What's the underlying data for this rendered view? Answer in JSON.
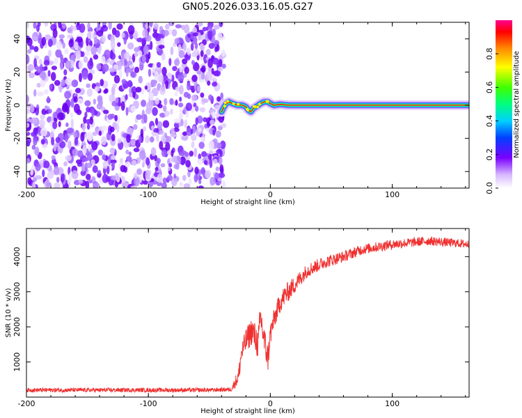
{
  "title": "GN05.2026.033.16.05.G27",
  "colors": {
    "snr_line": "#f03030",
    "axis": "#000000"
  },
  "chart_data": [
    {
      "type": "heatmap",
      "name": "spectrogram",
      "xlabel": "Height of straight line (km)",
      "ylabel": "Frequency (Hz)",
      "xlim": [
        -200,
        163
      ],
      "ylim": [
        -50,
        50
      ],
      "xticks": [
        -200,
        -100,
        0,
        100
      ],
      "xtick_labels": [
        "-200",
        "-100",
        "0",
        "100"
      ],
      "yticks": [
        -40,
        -20,
        0,
        20,
        40
      ],
      "ytick_labels": [
        "-40",
        "-20",
        "0",
        "20",
        "40"
      ],
      "noise_region_x": [
        -200,
        -38
      ],
      "signal_ridge": [
        {
          "x": -40,
          "y": -4
        },
        {
          "x": -38,
          "y": -1
        },
        {
          "x": -36,
          "y": 1
        },
        {
          "x": -34,
          "y": 2
        },
        {
          "x": -31,
          "y": 1
        },
        {
          "x": -27,
          "y": 0
        },
        {
          "x": -23,
          "y": 0
        },
        {
          "x": -20,
          "y": -1
        },
        {
          "x": -18,
          "y": -3
        },
        {
          "x": -16,
          "y": -4
        },
        {
          "x": -14,
          "y": -2
        },
        {
          "x": -12,
          "y": -1
        },
        {
          "x": -10,
          "y": 0
        },
        {
          "x": -8,
          "y": 1
        },
        {
          "x": -5,
          "y": 2
        },
        {
          "x": -2,
          "y": 2
        },
        {
          "x": 0,
          "y": 1
        },
        {
          "x": 3,
          "y": 0
        },
        {
          "x": 8,
          "y": 0.5
        },
        {
          "x": 15,
          "y": 0
        },
        {
          "x": 30,
          "y": 0
        },
        {
          "x": 60,
          "y": 0
        },
        {
          "x": 100,
          "y": 0
        },
        {
          "x": 163,
          "y": 0
        }
      ],
      "colorbar": {
        "label": "Normalized spectral amplitude",
        "range": [
          0,
          1
        ],
        "ticks": [
          0.0,
          0.2,
          0.4,
          0.6,
          0.8
        ],
        "tick_labels": [
          "0.0",
          "0.2",
          "0.4",
          "0.6",
          "0.8"
        ]
      }
    },
    {
      "type": "line",
      "name": "snr",
      "xlabel": "Height of straight line (km)",
      "ylabel": "SNR (10 * v/v)",
      "xlim": [
        -200,
        163
      ],
      "ylim": [
        0,
        4800
      ],
      "xticks": [
        -200,
        -100,
        0,
        100
      ],
      "xtick_labels": [
        "-200",
        "-100",
        "0",
        "100"
      ],
      "yticks": [
        1000,
        2000,
        3000,
        4000
      ],
      "ytick_labels": [
        "1000",
        "2000",
        "3000",
        "4000"
      ],
      "series": [
        {
          "name": "SNR",
          "x": [
            -200,
            -150,
            -100,
            -50,
            -32,
            -26,
            -24,
            -20,
            -15,
            -10,
            -8,
            -5,
            -2,
            0,
            3,
            8,
            12,
            20,
            30,
            45,
            60,
            75,
            100,
            130,
            163
          ],
          "y": [
            200,
            200,
            200,
            200,
            220,
            600,
            1200,
            1600,
            1900,
            1500,
            2300,
            1600,
            1100,
            1800,
            2200,
            2700,
            2900,
            3200,
            3600,
            3850,
            4000,
            4200,
            4350,
            4450,
            4350
          ],
          "noise_amplitude": [
            60,
            60,
            60,
            60,
            60,
            250,
            300,
            350,
            400,
            450,
            450,
            450,
            400,
            350,
            300,
            300,
            300,
            250,
            200,
            180,
            160,
            150,
            140,
            130,
            120
          ]
        }
      ]
    }
  ]
}
